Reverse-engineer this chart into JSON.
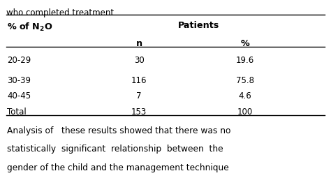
{
  "title_line": "who completed treatment",
  "col1_header_plain": "% of ",
  "col1_header_sub": "N",
  "col1_header_num": "2",
  "col1_header_end": "O",
  "col2_header": "Patients",
  "sub_col2": "n",
  "sub_col3": "%",
  "rows": [
    [
      "20-29",
      "30",
      "19.6"
    ],
    [
      "30-39",
      "116",
      "75.8"
    ],
    [
      "40-45",
      "7",
      "4.6"
    ],
    [
      "Total",
      "153",
      "100"
    ]
  ],
  "footer_lines": [
    "Analysis of   these results showed that there was no",
    "statistically  significant  relationship  between  the",
    "gender of the child and the management technique"
  ],
  "bg_color": "#ffffff",
  "text_color": "#000000",
  "font_size": 8.5,
  "bold_size": 9.2,
  "footer_font_size": 8.8
}
